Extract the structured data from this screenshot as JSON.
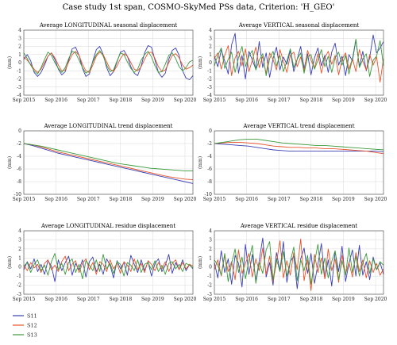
{
  "figure": {
    "title": "Case study 1st span, COSMO-SkyMed PSs data, Criterion: 'H_GEO'"
  },
  "colors": {
    "S11": "#3a3fb5",
    "S12": "#e8542a",
    "S13": "#3a9a3a"
  },
  "legend": {
    "placement": "bottom-left",
    "entries": [
      "S11",
      "S12",
      "S13"
    ]
  },
  "chart_data": [
    {
      "type": "line",
      "title": "Average LONGITUDINAL seasonal displacement",
      "ylabel": "(mm)",
      "ylim": [
        -4,
        4
      ],
      "yticks": [
        4,
        3,
        2,
        1,
        0,
        -1,
        -2,
        -3,
        -4
      ],
      "xticks": [
        "Sep 2015",
        "Sep 2016",
        "Sep 2017",
        "Sep 2018",
        "Sep 2019",
        "Sep 2020"
      ],
      "grid": true,
      "series": [
        {
          "name": "S11",
          "values": [
            0.4,
            1.0,
            0.2,
            -1.2,
            -1.7,
            -1.2,
            -0.3,
            0.8,
            1.2,
            0.4,
            -0.8,
            -1.5,
            -1.1,
            0.3,
            1.7,
            1.9,
            0.9,
            -0.7,
            -1.7,
            -1.4,
            0.2,
            1.6,
            2.0,
            1.0,
            -0.6,
            -1.6,
            -1.1,
            0.1,
            1.3,
            1.5,
            0.8,
            -0.5,
            -1.3,
            -1.6,
            -0.4,
            1.2,
            2.1,
            1.9,
            0.3,
            -1.2,
            -1.8,
            -1.3,
            0.4,
            1.5,
            1.8,
            0.9,
            -1.0,
            -1.9,
            -2.1,
            -1.6
          ]
        },
        {
          "name": "S12",
          "values": [
            0.7,
            0.3,
            -0.2,
            -0.8,
            -1.2,
            -0.8,
            0.0,
            0.8,
            1.2,
            0.6,
            -0.3,
            -1.0,
            -0.9,
            0.1,
            1.0,
            1.4,
            0.9,
            -0.2,
            -1.0,
            -1.2,
            -0.3,
            0.8,
            1.3,
            1.0,
            0.1,
            -0.8,
            -1.1,
            -0.4,
            0.5,
            1.1,
            0.8,
            0.0,
            -0.8,
            -1.0,
            -0.5,
            0.4,
            1.2,
            1.3,
            0.5,
            -0.5,
            -1.1,
            -0.9,
            0.0,
            0.9,
            1.1,
            0.6,
            -0.3,
            -0.8,
            -0.6,
            -0.3
          ]
        },
        {
          "name": "S13",
          "values": [
            1.2,
            0.5,
            -0.3,
            -1.0,
            -1.4,
            -0.6,
            0.4,
            1.3,
            0.9,
            0.0,
            -0.7,
            -1.2,
            -0.6,
            0.5,
            1.4,
            1.2,
            0.3,
            -0.6,
            -1.3,
            -1.0,
            0.1,
            1.0,
            1.5,
            0.8,
            -0.3,
            -1.1,
            -0.9,
            0.2,
            1.2,
            1.0,
            0.1,
            -0.7,
            -1.2,
            -0.8,
            0.3,
            1.0,
            1.4,
            0.7,
            -0.4,
            -1.2,
            -1.1,
            -0.2,
            0.9,
            1.2,
            0.5,
            -0.5,
            -1.0,
            -0.6,
            0.1,
            0.3
          ]
        }
      ]
    },
    {
      "type": "line",
      "title": "Average VERTICAL seasonal displacement",
      "ylabel": "(mm)",
      "ylim": [
        -4,
        4
      ],
      "yticks": [
        4,
        3,
        2,
        1,
        0,
        -1,
        -2,
        -3,
        -4
      ],
      "xticks": [
        "Sep 2015",
        "Sep 2016",
        "Sep 2017",
        "Sep 2018",
        "Sep 2019",
        "Sep 2020"
      ],
      "grid": true,
      "series": [
        {
          "name": "S11",
          "values": [
            0.8,
            -0.5,
            1.6,
            0.2,
            -1.4,
            2.2,
            3.6,
            -1.3,
            0.9,
            -2.0,
            1.4,
            0.3,
            -0.8,
            2.6,
            -0.6,
            1.2,
            -1.8,
            0.5,
            1.9,
            -0.9,
            0.7,
            -0.2,
            1.5,
            -1.1,
            0.4,
            2.0,
            -0.7,
            1.1,
            -1.5,
            0.6,
            1.8,
            -0.4,
            0.9,
            -1.2,
            1.3,
            2.4,
            -0.3,
            0.8,
            -1.6,
            1.0,
            0.2,
            2.8,
            -0.5,
            1.4,
            -1.0,
            0.6,
            3.4,
            1.2,
            1.8,
            2.6
          ]
        },
        {
          "name": "S12",
          "values": [
            0.5,
            1.2,
            -0.8,
            0.9,
            2.1,
            -1.6,
            0.6,
            1.4,
            -0.4,
            1.7,
            -1.1,
            0.3,
            1.9,
            -0.6,
            0.8,
            -1.4,
            1.2,
            0.4,
            -0.9,
            1.6,
            0.2,
            -1.2,
            0.9,
            1.3,
            -0.5,
            0.7,
            -1.0,
            1.5,
            0.3,
            -0.7,
            1.1,
            -1.3,
            0.6,
            1.4,
            -0.2,
            0.9,
            -1.5,
            0.4,
            1.2,
            -0.8,
            0.5,
            -1.1,
            1.6,
            0.2,
            -0.9,
            1.0,
            -0.3,
            0.7,
            -2.4,
            0.5
          ]
        },
        {
          "name": "S13",
          "values": [
            -0.4,
            0.9,
            1.8,
            -0.7,
            0.4,
            1.3,
            -1.2,
            0.6,
            2.0,
            -0.5,
            0.8,
            1.5,
            -0.9,
            0.3,
            1.1,
            -1.6,
            0.5,
            1.4,
            -0.4,
            0.9,
            -1.1,
            0.2,
            1.7,
            -0.6,
            0.4,
            1.2,
            -1.3,
            0.7,
            1.0,
            -0.8,
            0.3,
            1.6,
            -0.5,
            0.8,
            -1.2,
            0.6,
            1.3,
            -0.3,
            0.9,
            -1.4,
            0.5,
            2.9,
            -0.6,
            0.4,
            1.1,
            -1.7,
            0.3,
            0.8,
            2.7,
            -0.4
          ]
        }
      ]
    },
    {
      "type": "line",
      "title": "Average LONGITUDINAL trend displacement",
      "ylabel": "(mm)",
      "ylim": [
        -10,
        0
      ],
      "yticks": [
        0,
        -2,
        -4,
        -6,
        -8,
        -10
      ],
      "xticks": [
        "Sep 2015",
        "Sep 2016",
        "Sep 2017",
        "Sep 2018",
        "Sep 2019",
        "Sep 2020"
      ],
      "grid": true,
      "series": [
        {
          "name": "S11",
          "values": [
            -2.0,
            -2.3,
            -2.7,
            -3.1,
            -3.5,
            -3.8,
            -4.1,
            -4.4,
            -4.7,
            -5.0,
            -5.3,
            -5.6,
            -5.9,
            -6.2,
            -6.5,
            -6.8,
            -7.1,
            -7.4,
            -7.7,
            -8.0,
            -8.3
          ]
        },
        {
          "name": "S12",
          "values": [
            -2.0,
            -2.2,
            -2.5,
            -2.9,
            -3.3,
            -3.6,
            -3.9,
            -4.2,
            -4.5,
            -4.8,
            -5.1,
            -5.4,
            -5.7,
            -6.0,
            -6.3,
            -6.6,
            -6.9,
            -7.2,
            -7.4,
            -7.6,
            -7.7
          ]
        },
        {
          "name": "S13",
          "values": [
            -2.0,
            -2.2,
            -2.4,
            -2.7,
            -3.0,
            -3.3,
            -3.6,
            -3.9,
            -4.2,
            -4.5,
            -4.8,
            -5.1,
            -5.3,
            -5.5,
            -5.7,
            -5.9,
            -6.0,
            -6.1,
            -6.2,
            -6.3,
            -6.3
          ]
        }
      ]
    },
    {
      "type": "line",
      "title": "Average VERTICAL trend displacement",
      "ylabel": "(mm)",
      "ylim": [
        -10,
        0
      ],
      "yticks": [
        0,
        -2,
        -4,
        -6,
        -8,
        -10
      ],
      "xticks": [
        "Sep 2015",
        "Sep 2016",
        "Sep 2017",
        "Sep 2018",
        "Sep 2019",
        "Sep 2020"
      ],
      "grid": true,
      "series": [
        {
          "name": "S11",
          "values": [
            -2.0,
            -2.1,
            -2.2,
            -2.3,
            -2.4,
            -2.6,
            -2.8,
            -3.0,
            -3.1,
            -3.2,
            -3.2,
            -3.2,
            -3.2,
            -3.2,
            -3.2,
            -3.2,
            -3.2,
            -3.2,
            -3.2,
            -3.2,
            -3.3
          ]
        },
        {
          "name": "S12",
          "values": [
            -2.0,
            -1.9,
            -1.8,
            -1.8,
            -1.9,
            -2.0,
            -2.2,
            -2.4,
            -2.5,
            -2.6,
            -2.6,
            -2.7,
            -2.7,
            -2.8,
            -2.8,
            -2.9,
            -3.0,
            -3.1,
            -3.2,
            -3.4,
            -3.6
          ]
        },
        {
          "name": "S13",
          "values": [
            -2.0,
            -1.8,
            -1.6,
            -1.4,
            -1.3,
            -1.3,
            -1.5,
            -1.7,
            -1.9,
            -2.0,
            -2.1,
            -2.2,
            -2.3,
            -2.3,
            -2.4,
            -2.5,
            -2.6,
            -2.7,
            -2.8,
            -2.9,
            -3.0
          ]
        }
      ]
    },
    {
      "type": "line",
      "title": "Average LONGITUDINAL residue displacement",
      "ylabel": "(mm)",
      "ylim": [
        -3,
        4
      ],
      "yticks": [
        4,
        3,
        2,
        1,
        0,
        -1,
        -2,
        -3
      ],
      "xticks": [
        "Sep 2015",
        "Sep 2016",
        "Sep 2017",
        "Sep 2018",
        "Sep 2019",
        "Sep 2020"
      ],
      "grid": true,
      "series": [
        {
          "name": "S11",
          "values": [
            -0.3,
            0.6,
            -0.2,
            0.9,
            -0.5,
            0.3,
            -0.8,
            0.7,
            0.1,
            -1.6,
            0.8,
            -0.4,
            0.5,
            1.2,
            -0.9,
            0.4,
            -0.3,
            0.8,
            -1.1,
            0.6,
            1.1,
            -0.5,
            0.3,
            -0.8,
            0.9,
            0.2,
            -1.2,
            0.7,
            -0.2,
            0.5,
            -0.9,
            1.3,
            0.3,
            -0.6,
            0.8,
            -0.4,
            0.6,
            -1.0,
            0.4,
            0.9,
            -0.5,
            0.2,
            1.4,
            -0.7,
            0.5,
            -0.3,
            0.8,
            -0.4,
            0.3,
            -0.2
          ]
        },
        {
          "name": "S12",
          "values": [
            0.2,
            -0.4,
            0.5,
            -0.1,
            0.3,
            -0.6,
            0.4,
            0.8,
            -0.3,
            0.2,
            -0.5,
            0.6,
            1.2,
            -0.4,
            0.3,
            0.7,
            -0.6,
            0.4,
            0.9,
            -0.3,
            0.5,
            -0.8,
            0.6,
            0.3,
            -0.5,
            0.8,
            -0.2,
            0.4,
            -0.7,
            0.6,
            0.2,
            -0.5,
            0.9,
            -0.3,
            0.4,
            -0.6,
            0.7,
            0.3,
            -0.4,
            0.5,
            -0.2,
            0.6,
            -0.5,
            0.4,
            0.8,
            -0.3,
            0.5,
            -0.2,
            0.3,
            0.1
          ]
        },
        {
          "name": "S13",
          "values": [
            0.1,
            0.5,
            -0.6,
            0.3,
            0.8,
            -0.4,
            0.2,
            -0.9,
            0.6,
            1.5,
            -0.3,
            0.4,
            -0.8,
            0.5,
            0.9,
            -0.6,
            0.3,
            -1.3,
            0.7,
            0.2,
            -0.4,
            0.8,
            -0.5,
            1.4,
            -0.2,
            0.4,
            -0.7,
            0.6,
            0.3,
            -1.0,
            0.5,
            0.2,
            -0.4,
            0.8,
            -0.6,
            0.3,
            0.5,
            -0.3,
            0.7,
            -0.5,
            0.2,
            -0.8,
            0.4,
            0.6,
            -0.2,
            0.3,
            -0.5,
            0.4,
            0.2,
            -0.1
          ]
        }
      ]
    },
    {
      "type": "line",
      "title": "Average VERTICAL residue displacement",
      "ylabel": "(mm)",
      "ylim": [
        -3,
        4
      ],
      "yticks": [
        4,
        3,
        2,
        1,
        0,
        -1,
        -2,
        -3
      ],
      "xticks": [
        "Sep 2015",
        "Sep 2016",
        "Sep 2017",
        "Sep 2018",
        "Sep 2019",
        "Sep 2020"
      ],
      "grid": true,
      "series": [
        {
          "name": "S11",
          "values": [
            0.5,
            -1.2,
            1.8,
            -0.6,
            0.9,
            -1.9,
            1.3,
            0.4,
            -2.2,
            2.5,
            -0.8,
            1.4,
            -1.5,
            0.7,
            3.2,
            -1.1,
            0.5,
            -2.0,
            1.6,
            -0.4,
            2.8,
            -1.7,
            0.6,
            1.2,
            -2.4,
            0.9,
            2.1,
            -0.7,
            1.5,
            -1.8,
            0.3,
            2.6,
            -1.3,
            0.8,
            -2.1,
            1.7,
            -0.5,
            2.3,
            -1.6,
            0.4,
            1.9,
            -1.0,
            2.4,
            -0.9,
            0.6,
            -1.4,
            1.1,
            -0.3,
            0.5,
            -0.8
          ]
        },
        {
          "name": "S12",
          "values": [
            -0.3,
            0.8,
            -1.0,
            1.3,
            -0.5,
            0.6,
            -1.4,
            1.9,
            -0.7,
            0.4,
            1.5,
            -1.1,
            0.9,
            -0.4,
            2.1,
            -0.8,
            1.2,
            -1.6,
            0.5,
            2.9,
            -1.2,
            0.7,
            -0.9,
            1.6,
            -0.3,
            3.1,
            -1.5,
            0.8,
            -2.6,
            1.4,
            -0.6,
            1.0,
            -1.3,
            2.0,
            -0.4,
            0.9,
            -1.7,
            1.3,
            -0.8,
            0.5,
            -1.1,
            1.6,
            -0.5,
            0.8,
            -1.2,
            0.7,
            -0.6,
            0.4,
            -0.9,
            -0.2
          ]
        },
        {
          "name": "S13",
          "values": [
            0.8,
            0.2,
            -0.9,
            1.5,
            -1.6,
            0.4,
            2.0,
            -0.6,
            1.1,
            -1.3,
            0.7,
            2.4,
            -1.8,
            0.5,
            -0.7,
            1.9,
            2.8,
            -1.4,
            0.9,
            -0.5,
            1.7,
            -1.0,
            0.6,
            2.2,
            -1.5,
            0.8,
            -0.4,
            1.3,
            -1.9,
            0.5,
            2.5,
            -0.8,
            1.0,
            -1.2,
            0.6,
            1.8,
            -1.4,
            0.7,
            -0.9,
            2.1,
            -0.6,
            1.2,
            -1.0,
            0.4,
            1.5,
            -0.7,
            0.9,
            -0.3,
            0.6,
            0.2
          ]
        }
      ]
    }
  ]
}
